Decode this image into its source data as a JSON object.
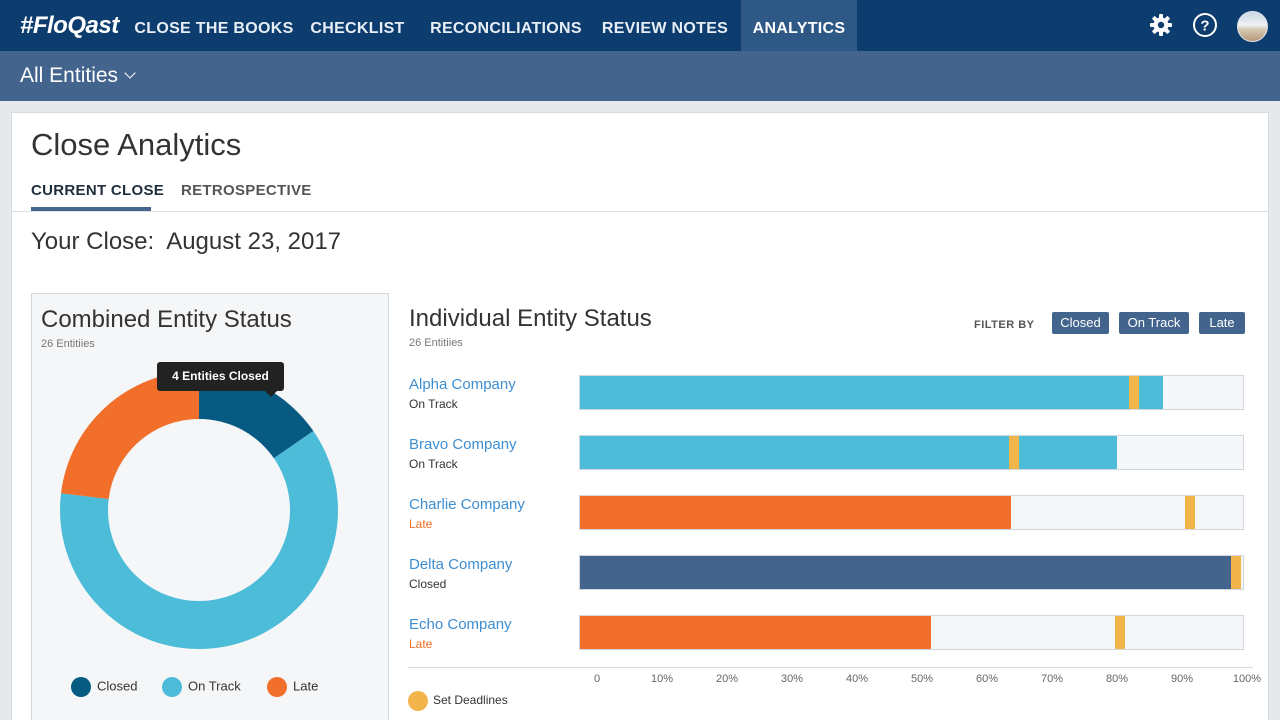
{
  "app": {
    "logo": "#FloQast",
    "nav": [
      {
        "label": "CLOSE THE BOOKS",
        "active": false
      },
      {
        "label": "CHECKLIST",
        "active": false
      },
      {
        "label": "RECONCILIATIONS",
        "active": false
      },
      {
        "label": "REVIEW NOTES",
        "active": false
      },
      {
        "label": "ANALYTICS",
        "active": true
      }
    ],
    "icons": [
      "gear-icon",
      "help-icon",
      "avatar"
    ]
  },
  "subbar": {
    "entity_select": "All Entities"
  },
  "page": {
    "title": "Close Analytics",
    "tabs": [
      {
        "label": "CURRENT CLOSE",
        "active": true
      },
      {
        "label": "RETROSPECTIVE",
        "active": false
      }
    ],
    "close_label": "Your Close:",
    "close_date": "August 23, 2017"
  },
  "combined": {
    "title": "Combined Entity Status",
    "subtitle": "26 Entitiies",
    "tooltip": "4 Entities Closed",
    "legend": [
      {
        "label": "Closed",
        "color": "#075b82"
      },
      {
        "label": "On Track",
        "color": "#4cbcd8"
      },
      {
        "label": "Late",
        "color": "#f16f2a"
      }
    ]
  },
  "individual": {
    "title": "Individual Entity Status",
    "subtitle": "26 Entitiies",
    "filter_label": "FILTER BY",
    "filters": [
      "Closed",
      "On Track",
      "Late"
    ],
    "deadline_legend": "Set Deadlines",
    "axis_ticks": [
      "0",
      "10%",
      "20%",
      "30%",
      "40%",
      "50%",
      "60%",
      "70%",
      "80%",
      "90%",
      "100%"
    ]
  },
  "colors": {
    "closed": "#43658d",
    "closed_donut": "#075b82",
    "on_track": "#4cbcd8",
    "late": "#f16f2a",
    "deadline": "#f2b54b",
    "link": "#3e8ed0"
  },
  "chart_data": [
    {
      "type": "pie",
      "title": "Combined Entity Status",
      "categories": [
        "Closed",
        "On Track",
        "Late"
      ],
      "values": [
        4,
        16,
        6
      ],
      "legend": "bottom"
    },
    {
      "type": "bar",
      "orientation": "horizontal",
      "title": "Individual Entity Status",
      "categories": [
        "Alpha Company",
        "Bravo Company",
        "Charlie Company",
        "Delta Company",
        "Echo Company"
      ],
      "statuses": [
        "On Track",
        "On Track",
        "Late",
        "Closed",
        "Late"
      ],
      "values": [
        88,
        81,
        65,
        98.5,
        53
      ],
      "deadlines": [
        83.5,
        65.5,
        92,
        99,
        81.5
      ],
      "xlim": [
        0,
        100
      ],
      "tick_labels": [
        "0",
        "10%",
        "20%",
        "30%",
        "40%",
        "50%",
        "60%",
        "70%",
        "80%",
        "90%",
        "100%"
      ]
    }
  ]
}
